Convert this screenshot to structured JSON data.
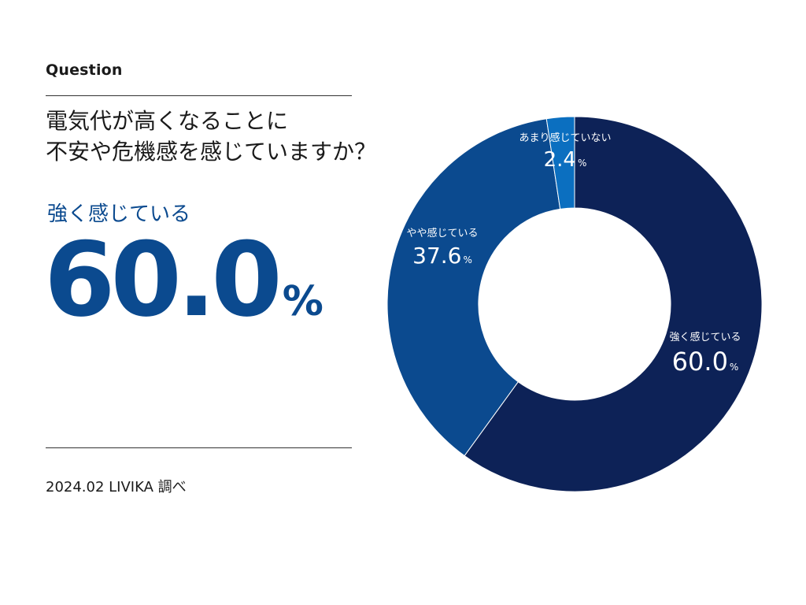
{
  "question_label": "Question",
  "question_lines": [
    "電気代が高くなることに",
    "不安や危機感を感じていますか？"
  ],
  "highlight": {
    "label": "強く感じている",
    "value": "60.0",
    "unit": "%"
  },
  "source": "2024.02 LIVIKA 調べ",
  "colors": {
    "accent": "#0b4a8f",
    "strong": "#0d2257",
    "some": "#0b4a8f",
    "little": "#0b6fc0"
  },
  "chart_data": {
    "type": "pie",
    "donut": true,
    "unit": "%",
    "slices": [
      {
        "label": "強く感じている",
        "value": 60.0,
        "display": "60.0",
        "color": "#0d2257"
      },
      {
        "label": "やや感じている",
        "value": 37.6,
        "display": "37.6",
        "color": "#0b4a8f"
      },
      {
        "label": "あまり感じていない",
        "value": 2.4,
        "display": "2.4",
        "color": "#0b6fc0"
      }
    ]
  }
}
